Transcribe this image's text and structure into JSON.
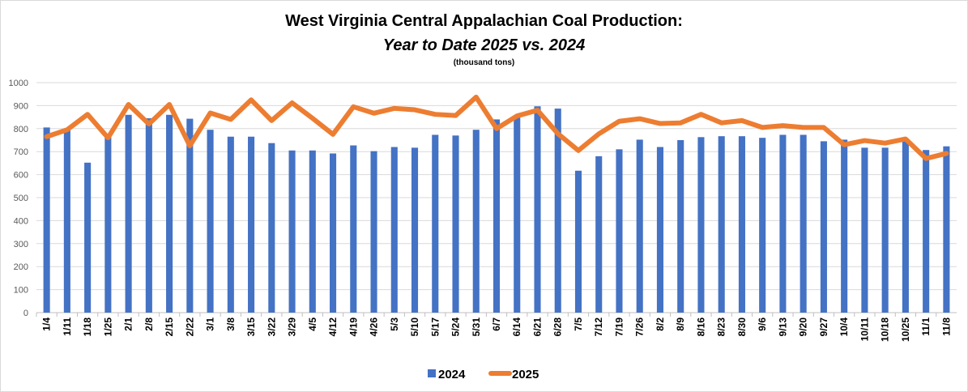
{
  "chart_data": {
    "type": "bar",
    "title": "West Virginia Central Appalachian Coal Production:",
    "subtitle": "Year to Date 2025 vs. 2024",
    "units": "(thousand tons)",
    "xlabel": "",
    "ylabel": "",
    "ylim": [
      0,
      1000
    ],
    "yticks": [
      0,
      100,
      200,
      300,
      400,
      500,
      600,
      700,
      800,
      900,
      1000
    ],
    "grid": true,
    "legend": "bottom-center",
    "categories": [
      "1/4",
      "1/11",
      "1/18",
      "1/25",
      "2/1",
      "2/8",
      "2/15",
      "2/22",
      "3/1",
      "3/8",
      "3/15",
      "3/22",
      "3/29",
      "4/5",
      "4/12",
      "4/19",
      "4/26",
      "5/3",
      "5/10",
      "5/17",
      "5/24",
      "5/31",
      "6/7",
      "6/14",
      "6/21",
      "6/28",
      "7/5",
      "7/12",
      "7/19",
      "7/26",
      "8/2",
      "8/9",
      "8/16",
      "8/23",
      "8/30",
      "9/6",
      "9/13",
      "9/20",
      "9/27",
      "10/4",
      "10/11",
      "10/18",
      "10/25",
      "11/1",
      "11/8"
    ],
    "series": [
      {
        "name": "2024",
        "type": "bar",
        "color": "#4472C4",
        "values": [
          805,
          795,
          652,
          765,
          860,
          845,
          860,
          843,
          795,
          765,
          765,
          737,
          705,
          705,
          692,
          727,
          702,
          720,
          717,
          773,
          770,
          795,
          840,
          855,
          897,
          887,
          617,
          680,
          710,
          752,
          720,
          750,
          763,
          767,
          767,
          760,
          773,
          773,
          745,
          752,
          717,
          717,
          745,
          707,
          723
        ]
      },
      {
        "name": "2025",
        "type": "line",
        "color": "#ED7D31",
        "values": [
          765,
          795,
          862,
          760,
          905,
          820,
          905,
          725,
          868,
          840,
          925,
          835,
          912,
          845,
          775,
          895,
          867,
          888,
          882,
          862,
          857,
          937,
          800,
          855,
          880,
          778,
          705,
          777,
          832,
          843,
          822,
          825,
          862,
          825,
          835,
          805,
          813,
          805,
          805,
          730,
          748,
          737,
          755,
          670,
          692
        ]
      }
    ]
  }
}
